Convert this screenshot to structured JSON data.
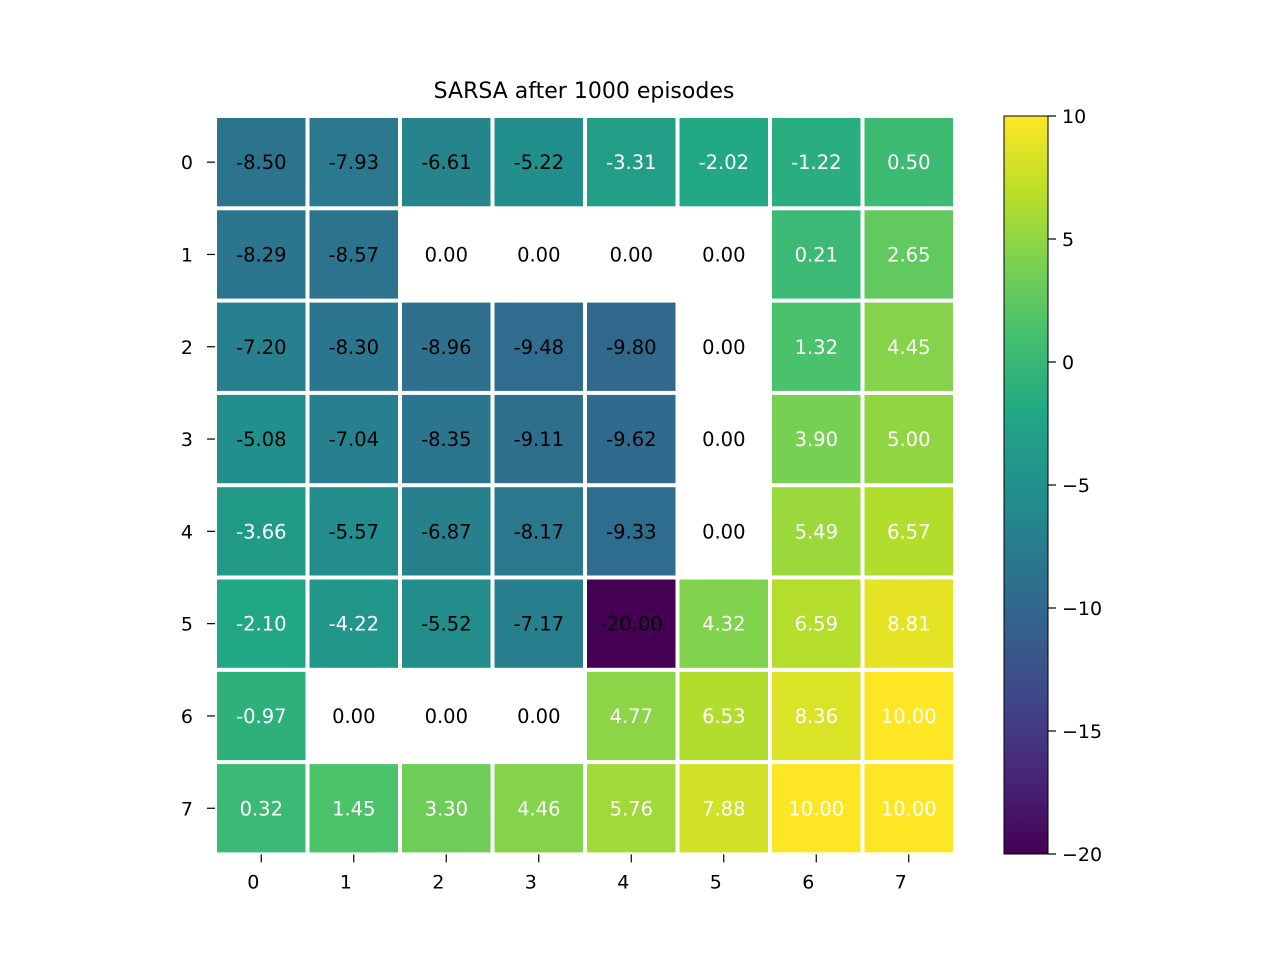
{
  "chart_data": {
    "type": "heatmap",
    "title": "SARSA after 1000 episodes",
    "xlabel": "",
    "ylabel": "",
    "x_ticks": [
      "0",
      "1",
      "2",
      "3",
      "4",
      "5",
      "6",
      "7"
    ],
    "y_ticks": [
      "0",
      "1",
      "2",
      "3",
      "4",
      "5",
      "6",
      "7"
    ],
    "values": [
      [
        -8.5,
        -7.93,
        -6.61,
        -5.22,
        -3.31,
        -2.02,
        -1.22,
        0.5
      ],
      [
        -8.29,
        -8.57,
        0.0,
        0.0,
        0.0,
        0.0,
        0.21,
        2.65
      ],
      [
        -7.2,
        -8.3,
        -8.96,
        -9.48,
        -9.8,
        0.0,
        1.32,
        4.45
      ],
      [
        -5.08,
        -7.04,
        -8.35,
        -9.11,
        -9.62,
        0.0,
        3.9,
        5.0
      ],
      [
        -3.66,
        -5.57,
        -6.87,
        -8.17,
        -9.33,
        0.0,
        5.49,
        6.57
      ],
      [
        -2.1,
        -4.22,
        -5.52,
        -7.17,
        -20.0,
        4.32,
        6.59,
        8.81
      ],
      [
        -0.97,
        0.0,
        0.0,
        0.0,
        4.77,
        6.53,
        8.36,
        10.0
      ],
      [
        0.32,
        1.45,
        3.3,
        4.46,
        5.76,
        7.88,
        10.0,
        10.0
      ]
    ],
    "masked": [
      [
        false,
        false,
        false,
        false,
        false,
        false,
        false,
        false
      ],
      [
        false,
        false,
        true,
        true,
        true,
        true,
        false,
        false
      ],
      [
        false,
        false,
        false,
        false,
        false,
        true,
        false,
        false
      ],
      [
        false,
        false,
        false,
        false,
        false,
        true,
        false,
        false
      ],
      [
        false,
        false,
        false,
        false,
        false,
        true,
        false,
        false
      ],
      [
        false,
        false,
        false,
        false,
        false,
        false,
        false,
        false
      ],
      [
        false,
        true,
        true,
        true,
        false,
        false,
        false,
        false
      ],
      [
        false,
        false,
        false,
        false,
        false,
        false,
        false,
        false
      ]
    ],
    "colormap": "viridis",
    "value_range": [
      -20,
      10
    ],
    "colorbar_ticks": [
      "10",
      "5",
      "0",
      "−5",
      "−10",
      "−15",
      "−20"
    ],
    "colorbar_tick_values": [
      10,
      5,
      0,
      -5,
      -10,
      -15,
      -20
    ],
    "cell_border_color": "#ffffff",
    "text_color_dark": "#000000",
    "text_color_light": "#ffffff"
  }
}
